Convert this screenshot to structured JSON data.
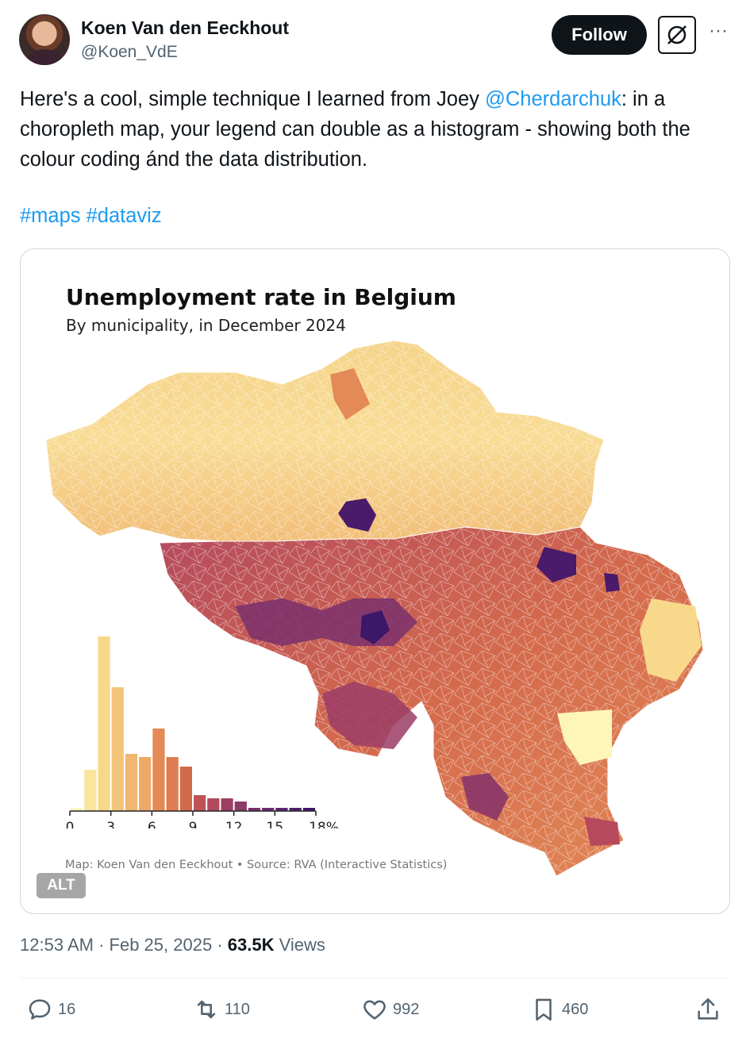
{
  "author": {
    "display_name": "Koen Van den Eeckhout",
    "handle": "@Koen_VdE"
  },
  "header": {
    "follow_label": "Follow",
    "more_icon": "more-icon",
    "grok_icon": "grok-icon"
  },
  "tweet": {
    "text_before": "Here's a cool, simple technique I learned from Joey ",
    "mention": "@Cherdarchuk",
    "text_after": ": in a choropleth map, your legend can double as a histogram - showing both the colour coding ánd the data distribution.",
    "hashtags": "#maps #dataviz"
  },
  "media": {
    "title": "Unemployment rate in Belgium",
    "subtitle": "By municipality, in December 2024",
    "credit": "Map: Koen Van den Eeckhout • Source: RVA (Interactive Statistics)",
    "alt_label": "ALT"
  },
  "chart_data": {
    "type": "bar",
    "title": "Unemployment rate in Belgium",
    "subtitle": "By municipality, in December 2024",
    "xlabel": "",
    "ylabel": "",
    "x_ticks": [
      "0",
      "3",
      "6",
      "9",
      "12",
      "15",
      "18%"
    ],
    "xlim": [
      0,
      18
    ],
    "bin_width": 1,
    "bins": [
      0,
      1,
      2,
      3,
      4,
      5,
      6,
      7,
      8,
      9,
      10,
      11,
      12,
      13,
      14,
      15,
      16,
      17
    ],
    "values": [
      1,
      13,
      55,
      39,
      18,
      17,
      26,
      17,
      14,
      5,
      4,
      4,
      3,
      1,
      1,
      1,
      1,
      1
    ],
    "colors": [
      "#fcf5c0",
      "#f9e59e",
      "#f6d889",
      "#f3c57a",
      "#f1b66f",
      "#eea966",
      "#e48a56",
      "#de7d50",
      "#d26a4c",
      "#be5356",
      "#b04a5c",
      "#9e3e63",
      "#8e3a68",
      "#7c2e6b",
      "#6a2a6e",
      "#5c2470",
      "#4d1e6d",
      "#401968"
    ],
    "grid": false,
    "legend": "none"
  },
  "meta": {
    "time": "12:53 AM",
    "date": "Feb 25, 2025",
    "views_count": "63.5K",
    "views_label": "Views"
  },
  "actions": {
    "replies": "16",
    "reposts": "110",
    "likes": "992",
    "bookmarks": "460"
  }
}
